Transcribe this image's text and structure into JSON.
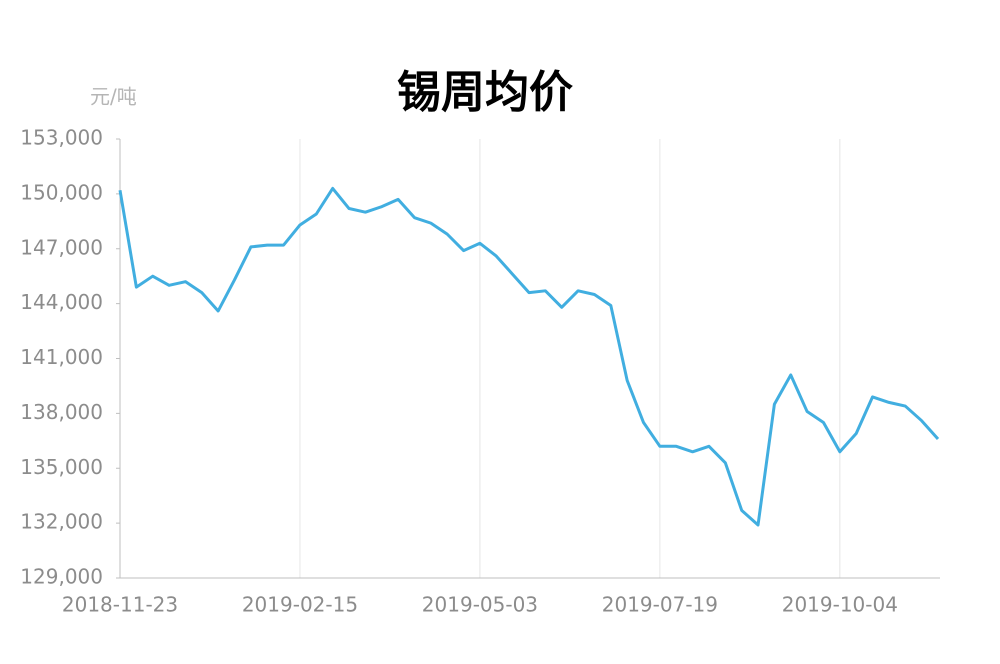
{
  "chart_data": {
    "type": "line",
    "title": "锡周均价",
    "y_label": "元/吨",
    "categories": [
      "2018-11-23",
      null,
      null,
      null,
      null,
      null,
      null,
      null,
      null,
      null,
      null,
      "2019-02-15",
      null,
      null,
      null,
      null,
      null,
      null,
      null,
      null,
      null,
      null,
      "2019-05-03",
      null,
      null,
      null,
      null,
      null,
      null,
      null,
      null,
      null,
      null,
      "2019-07-19",
      null,
      null,
      null,
      null,
      null,
      null,
      null,
      null,
      null,
      null,
      "2019-10-04",
      null,
      null,
      null,
      null,
      null,
      null
    ],
    "series": [
      {
        "name": "锡周均价",
        "color": "#41aee0",
        "values": [
          150200,
          144900,
          145500,
          145000,
          145200,
          144600,
          143600,
          145300,
          147100,
          147200,
          147200,
          148300,
          148900,
          150300,
          149200,
          149000,
          149300,
          149700,
          148700,
          148400,
          147800,
          146900,
          147300,
          146600,
          145600,
          144600,
          144700,
          143800,
          144700,
          144500,
          143900,
          139800,
          137500,
          136200,
          136200,
          135900,
          136200,
          135300,
          132700,
          131900,
          138500,
          140100,
          138100,
          137500,
          135900,
          136900,
          138900,
          138600,
          138400,
          137600,
          136600
        ]
      }
    ],
    "ylim": [
      129000,
      153000
    ],
    "yticks": [
      {
        "value": 129000,
        "label": "129,000"
      },
      {
        "value": 132000,
        "label": "132,000"
      },
      {
        "value": 135000,
        "label": "135,000"
      },
      {
        "value": 138000,
        "label": "138,000"
      },
      {
        "value": 141000,
        "label": "141,000"
      },
      {
        "value": 144000,
        "label": "144,000"
      },
      {
        "value": 147000,
        "label": "147,000"
      },
      {
        "value": 150000,
        "label": "150,000"
      },
      {
        "value": 153000,
        "label": "153,000"
      }
    ],
    "grid": true
  }
}
